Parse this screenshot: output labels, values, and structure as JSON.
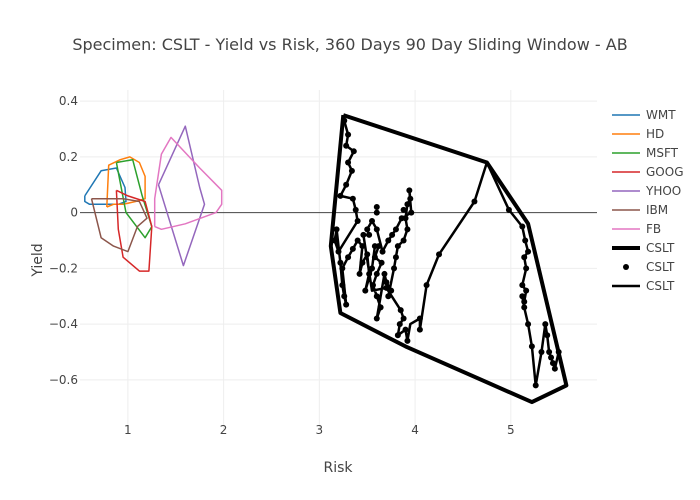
{
  "chart_data": {
    "type": "line",
    "title": "Specimen: CSLT - Yield vs Risk, 360 Days 90 Day Sliding Window - AB",
    "xlabel": "Risk",
    "ylabel": "Yield",
    "xlim": [
      0.5,
      5.9
    ],
    "ylim": [
      -0.78,
      0.44
    ],
    "xticks": [
      1,
      2,
      3,
      4,
      5
    ],
    "yticks": [
      -0.6,
      -0.4,
      -0.2,
      0,
      0.2,
      0.4
    ],
    "xtick_labels": [
      "1",
      "2",
      "3",
      "4",
      "5"
    ],
    "ytick_labels": [
      "−0.6",
      "−0.4",
      "−0.2",
      "0",
      "0.2",
      "0.4"
    ],
    "grid": true,
    "legend_position": "right",
    "series": [
      {
        "name": "WMT",
        "mode": "lines",
        "color": "#1f77b4",
        "width": 1.5,
        "points": [
          [
            0.55,
            0.06
          ],
          [
            0.72,
            0.15
          ],
          [
            0.88,
            0.16
          ],
          [
            0.97,
            0.09
          ],
          [
            0.98,
            0.04
          ],
          [
            0.9,
            0.03
          ],
          [
            0.6,
            0.03
          ],
          [
            0.55,
            0.04
          ],
          [
            0.55,
            0.06
          ]
        ]
      },
      {
        "name": "HD",
        "mode": "lines",
        "color": "#ff7f0e",
        "width": 1.5,
        "points": [
          [
            0.78,
            0.02
          ],
          [
            0.8,
            0.17
          ],
          [
            0.92,
            0.19
          ],
          [
            1.02,
            0.2
          ],
          [
            1.12,
            0.18
          ],
          [
            1.18,
            0.13
          ],
          [
            1.18,
            0.05
          ],
          [
            1.08,
            0.04
          ],
          [
            0.95,
            0.03
          ],
          [
            0.85,
            0.03
          ],
          [
            0.78,
            0.02
          ]
        ]
      },
      {
        "name": "MSFT",
        "mode": "lines",
        "color": "#2ca02c",
        "width": 1.5,
        "points": [
          [
            0.88,
            0.18
          ],
          [
            1.05,
            0.19
          ],
          [
            1.15,
            0.06
          ],
          [
            1.25,
            -0.05
          ],
          [
            1.18,
            -0.09
          ],
          [
            0.98,
            0.0
          ],
          [
            0.88,
            0.18
          ]
        ]
      },
      {
        "name": "GOOG",
        "mode": "lines",
        "color": "#d62728",
        "width": 1.5,
        "points": [
          [
            0.88,
            0.08
          ],
          [
            1.0,
            0.06
          ],
          [
            1.18,
            0.04
          ],
          [
            1.25,
            -0.05
          ],
          [
            1.22,
            -0.21
          ],
          [
            1.12,
            -0.21
          ],
          [
            0.95,
            -0.16
          ],
          [
            0.9,
            -0.06
          ],
          [
            0.88,
            0.08
          ]
        ]
      },
      {
        "name": "YHOO",
        "mode": "lines",
        "color": "#9467bd",
        "width": 1.5,
        "points": [
          [
            1.32,
            0.1
          ],
          [
            1.6,
            0.31
          ],
          [
            1.75,
            0.09
          ],
          [
            1.8,
            0.03
          ],
          [
            1.58,
            -0.19
          ],
          [
            1.32,
            0.1
          ]
        ]
      },
      {
        "name": "IBM",
        "mode": "lines",
        "color": "#8c564b",
        "width": 1.5,
        "points": [
          [
            0.62,
            0.05
          ],
          [
            0.72,
            0.05
          ],
          [
            0.95,
            0.05
          ],
          [
            1.12,
            0.04
          ],
          [
            1.2,
            -0.02
          ],
          [
            1.1,
            -0.05
          ],
          [
            1.0,
            -0.14
          ],
          [
            0.85,
            -0.12
          ],
          [
            0.72,
            -0.09
          ],
          [
            0.62,
            0.05
          ]
        ]
      },
      {
        "name": "FB",
        "mode": "lines",
        "color": "#e377c2",
        "width": 1.5,
        "points": [
          [
            1.28,
            -0.05
          ],
          [
            1.35,
            -0.06
          ],
          [
            1.6,
            -0.04
          ],
          [
            1.92,
            0.0
          ],
          [
            1.98,
            0.03
          ],
          [
            1.98,
            0.08
          ],
          [
            1.75,
            0.16
          ],
          [
            1.45,
            0.27
          ],
          [
            1.35,
            0.21
          ],
          [
            1.28,
            0.05
          ],
          [
            1.28,
            -0.05
          ]
        ]
      },
      {
        "name": "CSLT",
        "mode": "lines",
        "color": "#000000",
        "width": 4,
        "points": [
          [
            3.25,
            0.35
          ],
          [
            4.75,
            0.18
          ],
          [
            5.18,
            -0.04
          ],
          [
            5.58,
            -0.62
          ],
          [
            5.22,
            -0.68
          ],
          [
            3.9,
            -0.48
          ],
          [
            3.22,
            -0.36
          ],
          [
            3.12,
            -0.12
          ],
          [
            3.25,
            0.35
          ]
        ]
      },
      {
        "name": "CSLT",
        "mode": "markers",
        "color": "#000000",
        "size": 5,
        "points": [
          [
            3.26,
            0.33
          ],
          [
            3.3,
            0.28
          ],
          [
            3.28,
            0.24
          ],
          [
            3.36,
            0.22
          ],
          [
            3.3,
            0.18
          ],
          [
            3.34,
            0.15
          ],
          [
            3.28,
            0.1
          ],
          [
            3.22,
            0.06
          ],
          [
            3.35,
            0.05
          ],
          [
            3.38,
            0.01
          ],
          [
            3.4,
            -0.03
          ],
          [
            3.46,
            -0.08
          ],
          [
            3.52,
            -0.08
          ],
          [
            3.55,
            -0.03
          ],
          [
            3.6,
            -0.06
          ],
          [
            3.6,
            0.0
          ],
          [
            3.6,
            0.02
          ],
          [
            3.62,
            -0.12
          ],
          [
            3.58,
            -0.16
          ],
          [
            3.65,
            -0.18
          ],
          [
            3.6,
            -0.22
          ],
          [
            3.56,
            -0.26
          ],
          [
            3.6,
            -0.3
          ],
          [
            3.64,
            -0.34
          ],
          [
            3.6,
            -0.38
          ],
          [
            3.68,
            -0.22
          ],
          [
            3.7,
            -0.27
          ],
          [
            3.72,
            -0.3
          ],
          [
            3.78,
            -0.2
          ],
          [
            3.8,
            -0.16
          ],
          [
            3.82,
            -0.12
          ],
          [
            3.88,
            -0.1
          ],
          [
            3.92,
            -0.06
          ],
          [
            3.9,
            -0.02
          ],
          [
            3.92,
            0.03
          ],
          [
            3.95,
            0.05
          ],
          [
            3.94,
            0.08
          ],
          [
            3.96,
            0.0
          ],
          [
            3.85,
            -0.35
          ],
          [
            3.88,
            -0.38
          ],
          [
            3.9,
            -0.42
          ],
          [
            3.92,
            -0.46
          ],
          [
            3.82,
            -0.44
          ],
          [
            3.84,
            -0.4
          ],
          [
            4.05,
            -0.38
          ],
          [
            4.05,
            -0.42
          ],
          [
            4.12,
            -0.26
          ],
          [
            4.25,
            -0.15
          ],
          [
            4.62,
            0.04
          ],
          [
            4.98,
            0.01
          ],
          [
            5.12,
            -0.05
          ],
          [
            5.15,
            -0.1
          ],
          [
            5.18,
            -0.14
          ],
          [
            5.14,
            -0.16
          ],
          [
            5.16,
            -0.2
          ],
          [
            5.12,
            -0.26
          ],
          [
            5.16,
            -0.28
          ],
          [
            5.14,
            -0.32
          ],
          [
            5.12,
            -0.3
          ],
          [
            5.14,
            -0.34
          ],
          [
            5.18,
            -0.4
          ],
          [
            5.22,
            -0.48
          ],
          [
            5.26,
            -0.62
          ],
          [
            5.32,
            -0.5
          ],
          [
            5.38,
            -0.44
          ],
          [
            5.4,
            -0.5
          ],
          [
            5.42,
            -0.52
          ],
          [
            5.44,
            -0.54
          ],
          [
            5.46,
            -0.56
          ],
          [
            5.5,
            -0.5
          ],
          [
            5.36,
            -0.4
          ],
          [
            3.2,
            -0.14
          ],
          [
            3.16,
            -0.1
          ],
          [
            3.18,
            -0.06
          ],
          [
            3.22,
            -0.18
          ],
          [
            3.24,
            -0.26
          ],
          [
            3.26,
            -0.3
          ],
          [
            3.28,
            -0.33
          ],
          [
            3.24,
            -0.2
          ],
          [
            3.3,
            -0.16
          ],
          [
            3.35,
            -0.13
          ],
          [
            3.4,
            -0.1
          ],
          [
            3.45,
            -0.12
          ],
          [
            3.5,
            -0.15
          ],
          [
            3.52,
            -0.22
          ],
          [
            3.48,
            -0.28
          ],
          [
            3.55,
            -0.2
          ],
          [
            3.58,
            -0.12
          ],
          [
            3.66,
            -0.14
          ],
          [
            3.72,
            -0.1
          ],
          [
            3.76,
            -0.08
          ],
          [
            3.8,
            -0.06
          ],
          [
            3.86,
            -0.02
          ],
          [
            3.88,
            0.01
          ],
          [
            3.7,
            -0.25
          ],
          [
            3.75,
            -0.28
          ],
          [
            3.45,
            -0.18
          ],
          [
            3.42,
            -0.22
          ],
          [
            3.5,
            -0.06
          ]
        ]
      },
      {
        "name": "CSLT",
        "mode": "lines",
        "color": "#000000",
        "width": 2.5,
        "points": [
          [
            3.26,
            0.33
          ],
          [
            3.3,
            0.28
          ],
          [
            3.28,
            0.24
          ],
          [
            3.36,
            0.22
          ],
          [
            3.3,
            0.18
          ],
          [
            3.34,
            0.15
          ],
          [
            3.28,
            0.1
          ],
          [
            3.22,
            0.06
          ],
          [
            3.35,
            0.05
          ],
          [
            3.38,
            0.01
          ],
          [
            3.4,
            -0.03
          ],
          [
            3.2,
            -0.14
          ],
          [
            3.16,
            -0.1
          ],
          [
            3.18,
            -0.06
          ],
          [
            3.22,
            -0.18
          ],
          [
            3.24,
            -0.26
          ],
          [
            3.26,
            -0.3
          ],
          [
            3.28,
            -0.33
          ],
          [
            3.24,
            -0.2
          ],
          [
            3.3,
            -0.16
          ],
          [
            3.35,
            -0.13
          ],
          [
            3.4,
            -0.1
          ],
          [
            3.45,
            -0.12
          ],
          [
            3.42,
            -0.22
          ],
          [
            3.45,
            -0.18
          ],
          [
            3.5,
            -0.15
          ],
          [
            3.52,
            -0.22
          ],
          [
            3.48,
            -0.28
          ],
          [
            3.55,
            -0.2
          ],
          [
            3.58,
            -0.12
          ],
          [
            3.62,
            -0.12
          ],
          [
            3.58,
            -0.16
          ],
          [
            3.65,
            -0.18
          ],
          [
            3.6,
            -0.22
          ],
          [
            3.56,
            -0.26
          ],
          [
            3.6,
            -0.3
          ],
          [
            3.64,
            -0.34
          ],
          [
            3.6,
            -0.38
          ],
          [
            3.68,
            -0.22
          ],
          [
            3.7,
            -0.25
          ],
          [
            3.75,
            -0.28
          ],
          [
            3.72,
            -0.3
          ],
          [
            3.78,
            -0.2
          ],
          [
            3.8,
            -0.16
          ],
          [
            3.82,
            -0.12
          ],
          [
            3.88,
            -0.1
          ],
          [
            3.92,
            -0.06
          ],
          [
            3.9,
            -0.02
          ],
          [
            3.92,
            0.03
          ],
          [
            3.95,
            0.05
          ],
          [
            3.94,
            0.08
          ],
          [
            3.96,
            0.0
          ],
          [
            3.86,
            -0.02
          ],
          [
            3.8,
            -0.06
          ],
          [
            3.76,
            -0.08
          ],
          [
            3.72,
            -0.1
          ],
          [
            3.66,
            -0.14
          ],
          [
            3.6,
            -0.06
          ],
          [
            3.55,
            -0.03
          ],
          [
            3.5,
            -0.06
          ],
          [
            3.52,
            -0.08
          ],
          [
            3.46,
            -0.08
          ],
          [
            3.55,
            -0.28
          ],
          [
            3.7,
            -0.27
          ],
          [
            3.85,
            -0.35
          ],
          [
            3.88,
            -0.38
          ],
          [
            3.84,
            -0.4
          ],
          [
            3.82,
            -0.44
          ],
          [
            3.9,
            -0.42
          ],
          [
            3.92,
            -0.46
          ],
          [
            3.95,
            -0.4
          ],
          [
            4.05,
            -0.38
          ],
          [
            4.05,
            -0.42
          ],
          [
            4.12,
            -0.26
          ],
          [
            4.25,
            -0.15
          ],
          [
            4.62,
            0.04
          ],
          [
            4.75,
            0.18
          ],
          [
            4.98,
            0.01
          ],
          [
            5.12,
            -0.05
          ],
          [
            5.15,
            -0.1
          ],
          [
            5.18,
            -0.14
          ],
          [
            5.14,
            -0.16
          ],
          [
            5.16,
            -0.2
          ],
          [
            5.12,
            -0.26
          ],
          [
            5.16,
            -0.28
          ],
          [
            5.14,
            -0.32
          ],
          [
            5.12,
            -0.3
          ],
          [
            5.14,
            -0.34
          ],
          [
            5.18,
            -0.4
          ],
          [
            5.22,
            -0.48
          ],
          [
            5.26,
            -0.62
          ],
          [
            5.32,
            -0.5
          ],
          [
            5.36,
            -0.4
          ],
          [
            5.38,
            -0.44
          ],
          [
            5.4,
            -0.5
          ],
          [
            5.42,
            -0.52
          ],
          [
            5.44,
            -0.54
          ],
          [
            5.46,
            -0.56
          ],
          [
            5.5,
            -0.5
          ],
          [
            5.58,
            -0.62
          ]
        ]
      }
    ]
  }
}
